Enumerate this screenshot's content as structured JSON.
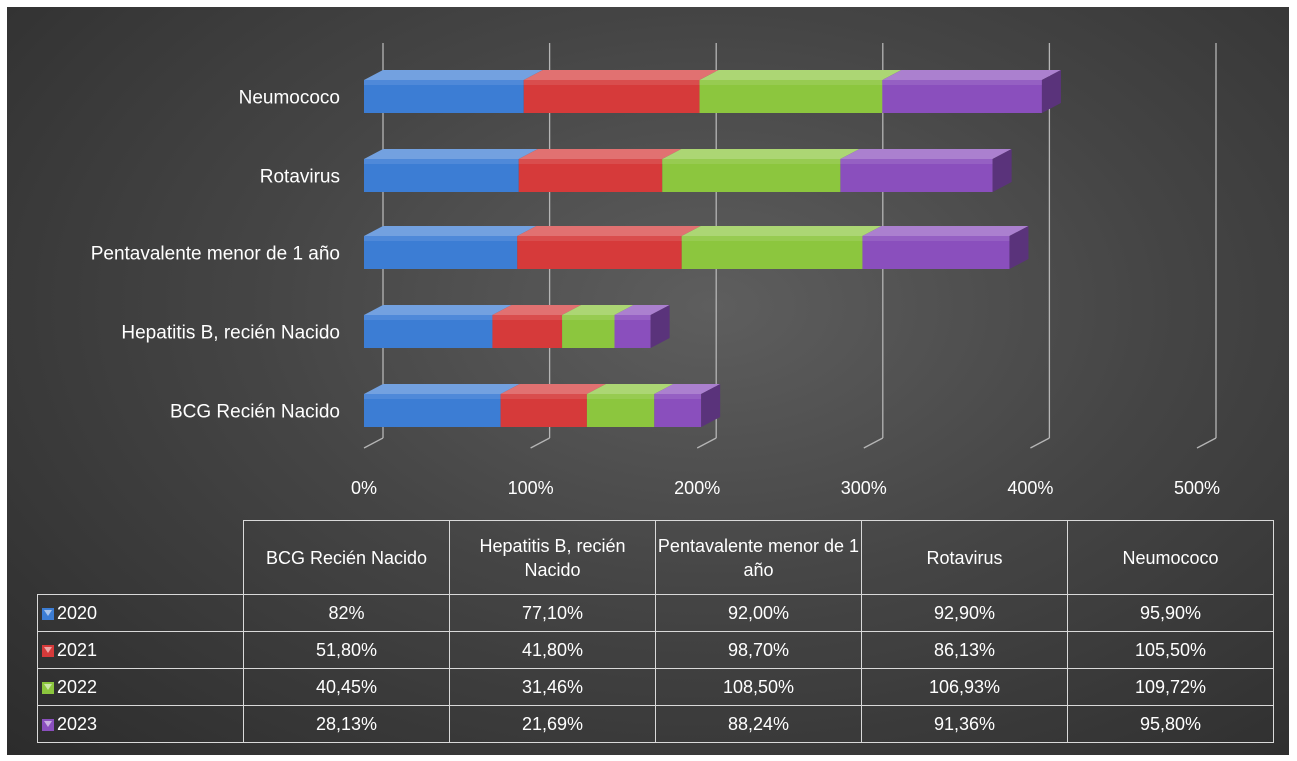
{
  "chart_data": {
    "type": "bar",
    "orientation": "horizontal",
    "stacked": true,
    "style": "3d",
    "categories": [
      "BCG Recién Nacido",
      "Hepatitis B, recién Nacido",
      "Pentavalente menor de 1 año",
      "Rotavirus",
      "Neumococo"
    ],
    "series": [
      {
        "name": "2020",
        "color": "#3c7dd4",
        "values": [
          82,
          77.1,
          92.0,
          92.9,
          95.9
        ],
        "labels": [
          "82%",
          "77,10%",
          "92,00%",
          "92,90%",
          "95,90%"
        ]
      },
      {
        "name": "2021",
        "color": "#d63a3a",
        "values": [
          51.8,
          41.8,
          98.7,
          86.13,
          105.5
        ],
        "labels": [
          "51,80%",
          "41,80%",
          "98,70%",
          "86,13%",
          "105,50%"
        ]
      },
      {
        "name": "2022",
        "color": "#8cc63e",
        "values": [
          40.45,
          31.46,
          108.5,
          106.93,
          109.72
        ],
        "labels": [
          "40,45%",
          "31,46%",
          "108,50%",
          "106,93%",
          "109,72%"
        ]
      },
      {
        "name": "2023",
        "color": "#8a4fbd",
        "values": [
          28.13,
          21.69,
          88.24,
          91.36,
          95.8
        ],
        "labels": [
          "28,13%",
          "21,69%",
          "88,24%",
          "91,36%",
          "95,80%"
        ]
      }
    ],
    "xlim": [
      0,
      500
    ],
    "xticks": [
      "0%",
      "100%",
      "200%",
      "300%",
      "400%",
      "500%"
    ],
    "grid": true,
    "data_table": true,
    "title": "",
    "xlabel": "",
    "ylabel": ""
  },
  "table": {
    "headers": [
      "BCG Recién Nacido",
      "Hepatitis B, recién Nacido",
      "Pentavalente menor de 1 año",
      "Rotavirus",
      "Neumococo"
    ]
  }
}
